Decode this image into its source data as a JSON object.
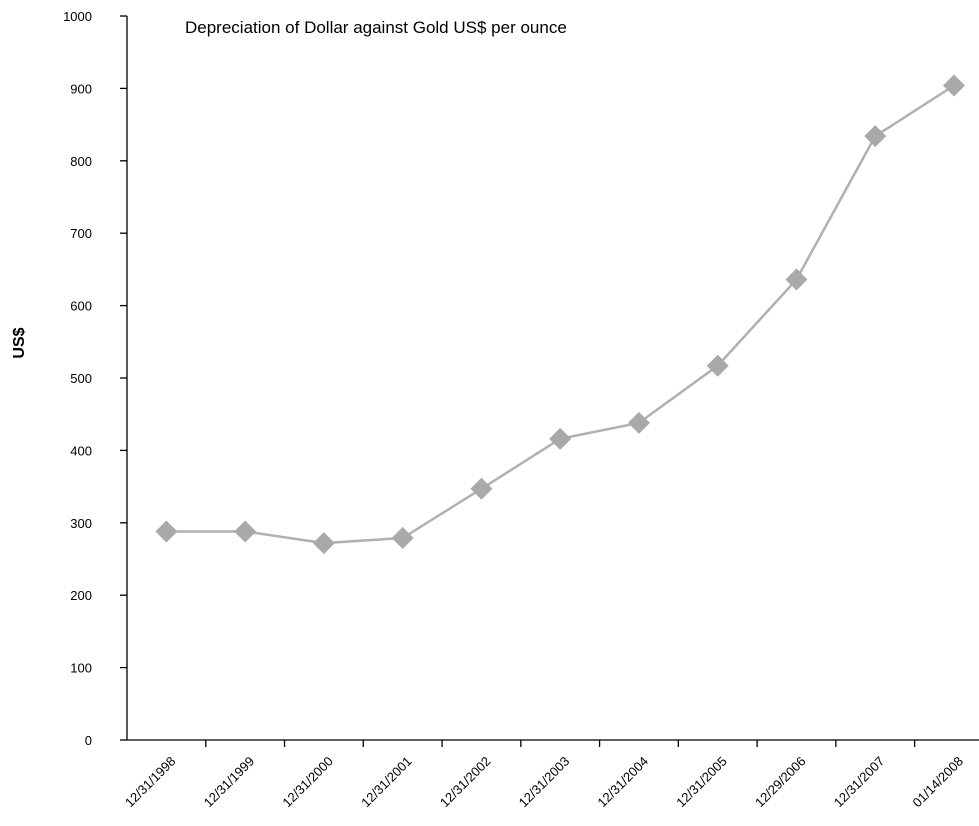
{
  "chart_data": {
    "type": "line",
    "title": "Depreciation of Dollar against Gold US$ per ounce",
    "xlabel": "",
    "ylabel": "US$",
    "categories": [
      "12/31/1998",
      "12/31/1999",
      "12/31/2000",
      "12/31/2001",
      "12/31/2002",
      "12/31/2003",
      "12/31/2004",
      "12/31/2005",
      "12/29/2006",
      "12/31/2007",
      "01/14/2008"
    ],
    "series": [
      {
        "values": [
          288,
          288,
          272,
          279,
          347,
          416,
          438,
          517,
          636,
          834,
          904
        ]
      }
    ],
    "ylim": [
      0,
      1000
    ],
    "yticks": [
      "0",
      "100",
      "200",
      "300",
      "400",
      "500",
      "600",
      "700",
      "800",
      "900",
      "1000"
    ],
    "grid": false,
    "legend": "none",
    "series_color": "#b0b0b0",
    "marker_color": "#a9a9a9",
    "marker": "diamond"
  }
}
